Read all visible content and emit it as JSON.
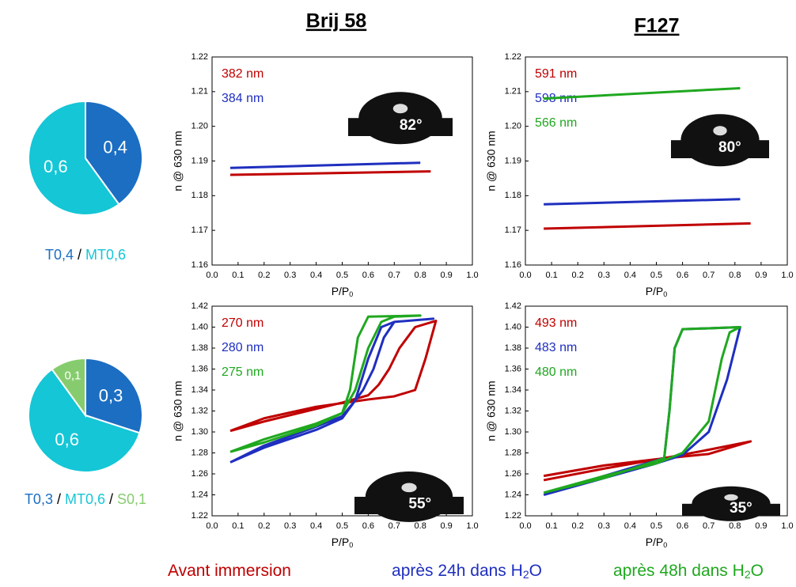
{
  "chart_data": [
    {
      "type": "pie",
      "categories": [
        "T0,4",
        "MT0,6"
      ],
      "values": [
        0.4,
        0.6
      ],
      "value_labels": [
        "0,4",
        "0,6"
      ],
      "colors": [
        "#1b6ec2",
        "#14c6d6"
      ],
      "separator": "/"
    },
    {
      "type": "pie",
      "categories": [
        "T0,3",
        "MT0,6",
        "S0,1"
      ],
      "values": [
        0.3,
        0.6,
        0.1
      ],
      "value_labels": [
        "0,3",
        "0,6",
        "0,1"
      ],
      "colors": [
        "#1b6ec2",
        "#14c6d6",
        "#86cc6e"
      ],
      "separator": "/"
    },
    {
      "type": "line",
      "title": "Brij 58",
      "y_label": "n @ 630 nm",
      "x_label": [
        "P/P",
        "0"
      ],
      "contact_angle": "82°",
      "xlim": [
        0,
        1
      ],
      "xticks": [
        {
          "value": 0,
          "label": "0.0"
        },
        0.1,
        0.2,
        0.3,
        0.4,
        0.5,
        0.6,
        0.7,
        0.8,
        0.9,
        {
          "value": 1,
          "label": "1.0"
        }
      ],
      "ylim": [
        1.16,
        1.22
      ],
      "yticks": [
        1.16,
        1.17,
        1.18,
        1.19,
        {
          "value": 1.2,
          "label": "1.20"
        },
        1.21,
        1.22
      ],
      "series": [
        {
          "label": "382 nm",
          "color": "#c00000",
          "x": [
            0.07,
            0.84
          ],
          "values": [
            1.186,
            1.187
          ]
        },
        {
          "label": "384 nm",
          "color": "#1f2fbf",
          "x": [
            0.07,
            0.8
          ],
          "values": [
            1.188,
            1.1895
          ]
        }
      ]
    },
    {
      "type": "line",
      "title": "F127",
      "y_label": "n @ 630 nm",
      "x_label": [
        "P/P",
        "0"
      ],
      "contact_angle": "80°",
      "xlim": [
        0,
        1
      ],
      "xticks": [
        {
          "value": 0,
          "label": "0.0"
        },
        0.1,
        0.2,
        0.3,
        0.4,
        0.5,
        0.6,
        0.7,
        0.8,
        0.9,
        {
          "value": 1,
          "label": "1.0"
        }
      ],
      "ylim": [
        1.16,
        1.22
      ],
      "yticks": [
        1.16,
        1.17,
        1.18,
        1.19,
        {
          "value": 1.2,
          "label": "1.20"
        },
        1.21,
        1.22
      ],
      "series": [
        {
          "label": "591 nm",
          "color": "#c00000",
          "x": [
            0.07,
            0.86
          ],
          "values": [
            1.1705,
            1.172
          ]
        },
        {
          "label": "598 nm",
          "color": "#1f2fbf",
          "x": [
            0.07,
            0.82
          ],
          "values": [
            1.1775,
            1.179
          ]
        },
        {
          "label": "566 nm",
          "color": "#1fa81f",
          "x": [
            0.07,
            0.82
          ],
          "values": [
            1.208,
            1.211
          ]
        }
      ]
    },
    {
      "type": "line",
      "y_label": "n @ 630 nm",
      "x_label": [
        "P/P",
        "0"
      ],
      "contact_angle": "55°",
      "xlim": [
        0,
        1
      ],
      "xticks": [
        {
          "value": 0,
          "label": "0.0"
        },
        0.1,
        0.2,
        0.3,
        0.4,
        0.5,
        0.6,
        0.7,
        0.8,
        0.9,
        {
          "value": 1,
          "label": "1.0"
        }
      ],
      "ylim": [
        1.22,
        1.42
      ],
      "yticks": [
        1.22,
        1.24,
        1.26,
        1.28,
        {
          "value": 1.3,
          "label": "1.30"
        },
        1.32,
        1.34,
        1.36,
        1.38,
        {
          "value": 1.4,
          "label": "1.40"
        },
        1.42
      ],
      "series": [
        {
          "label": "270 nm",
          "color": "#c00000",
          "x": [
            0.07,
            0.2,
            0.4,
            0.6,
            0.7,
            0.78,
            0.82,
            0.86,
            0.78,
            0.72,
            0.68,
            0.64,
            0.6,
            0.5,
            0.4,
            0.2,
            0.07
          ],
          "values": [
            1.301,
            1.313,
            1.324,
            1.331,
            1.334,
            1.34,
            1.37,
            1.406,
            1.4,
            1.38,
            1.36,
            1.345,
            1.335,
            1.328,
            1.322,
            1.31,
            1.301
          ]
        },
        {
          "label": "280 nm",
          "color": "#1f2fbf",
          "x": [
            0.07,
            0.2,
            0.4,
            0.5,
            0.55,
            0.6,
            0.65,
            0.7,
            0.85,
            0.7,
            0.66,
            0.62,
            0.58,
            0.55,
            0.5,
            0.4,
            0.2,
            0.07
          ],
          "values": [
            1.271,
            1.285,
            1.302,
            1.313,
            1.33,
            1.37,
            1.4,
            1.405,
            1.408,
            1.405,
            1.39,
            1.36,
            1.34,
            1.33,
            1.315,
            1.305,
            1.287,
            1.271
          ]
        },
        {
          "label": "275 nm",
          "color": "#1fa81f",
          "x": [
            0.07,
            0.2,
            0.4,
            0.5,
            0.55,
            0.6,
            0.65,
            0.7,
            0.8,
            0.6,
            0.56,
            0.53,
            0.5,
            0.4,
            0.2,
            0.07
          ],
          "values": [
            1.281,
            1.29,
            1.306,
            1.318,
            1.34,
            1.38,
            1.405,
            1.41,
            1.411,
            1.41,
            1.39,
            1.34,
            1.318,
            1.308,
            1.293,
            1.281
          ]
        }
      ]
    },
    {
      "type": "line",
      "y_label": "n @ 630 nm",
      "x_label": [
        "P/P",
        "0"
      ],
      "contact_angle": "35°",
      "xlim": [
        0,
        1
      ],
      "xticks": [
        {
          "value": 0,
          "label": "0.0"
        },
        0.1,
        0.2,
        0.3,
        0.4,
        0.5,
        0.6,
        0.7,
        0.8,
        0.9,
        {
          "value": 1,
          "label": "1.0"
        }
      ],
      "ylim": [
        1.22,
        1.42
      ],
      "yticks": [
        1.22,
        1.24,
        1.26,
        1.28,
        {
          "value": 1.3,
          "label": "1.30"
        },
        1.32,
        1.34,
        1.36,
        1.38,
        {
          "value": 1.4,
          "label": "1.40"
        },
        1.42
      ],
      "series": [
        {
          "label": "493 nm",
          "color": "#c00000",
          "x": [
            0.07,
            0.3,
            0.5,
            0.7,
            0.86,
            0.7,
            0.55,
            0.3,
            0.07
          ],
          "values": [
            1.258,
            1.268,
            1.274,
            1.279,
            1.291,
            1.283,
            1.276,
            1.265,
            1.254
          ]
        },
        {
          "label": "483 nm",
          "color": "#1f2fbf",
          "x": [
            0.07,
            0.3,
            0.5,
            0.6,
            0.7,
            0.77,
            0.8,
            0.82,
            0.6,
            0.57,
            0.55,
            0.53,
            0.3,
            0.07
          ],
          "values": [
            1.24,
            1.256,
            1.27,
            1.278,
            1.3,
            1.35,
            1.38,
            1.4,
            1.398,
            1.38,
            1.32,
            1.275,
            1.258,
            1.24
          ]
        },
        {
          "label": "480 nm",
          "color": "#1fa81f",
          "x": [
            0.07,
            0.3,
            0.5,
            0.6,
            0.7,
            0.75,
            0.78,
            0.82,
            0.6,
            0.57,
            0.55,
            0.53,
            0.3,
            0.07
          ],
          "values": [
            1.242,
            1.258,
            1.27,
            1.28,
            1.31,
            1.37,
            1.395,
            1.4,
            1.398,
            1.38,
            1.32,
            1.275,
            1.256,
            1.242
          ]
        }
      ]
    }
  ],
  "legend": [
    {
      "text": [
        "Avant immersion"
      ],
      "color": "#c00000"
    },
    {
      "text": [
        "après 24h dans H",
        "2",
        "O"
      ],
      "color": "#1f2fbf"
    },
    {
      "text": [
        "après 48h dans H",
        "2",
        "O"
      ],
      "color": "#1fa81f"
    }
  ]
}
